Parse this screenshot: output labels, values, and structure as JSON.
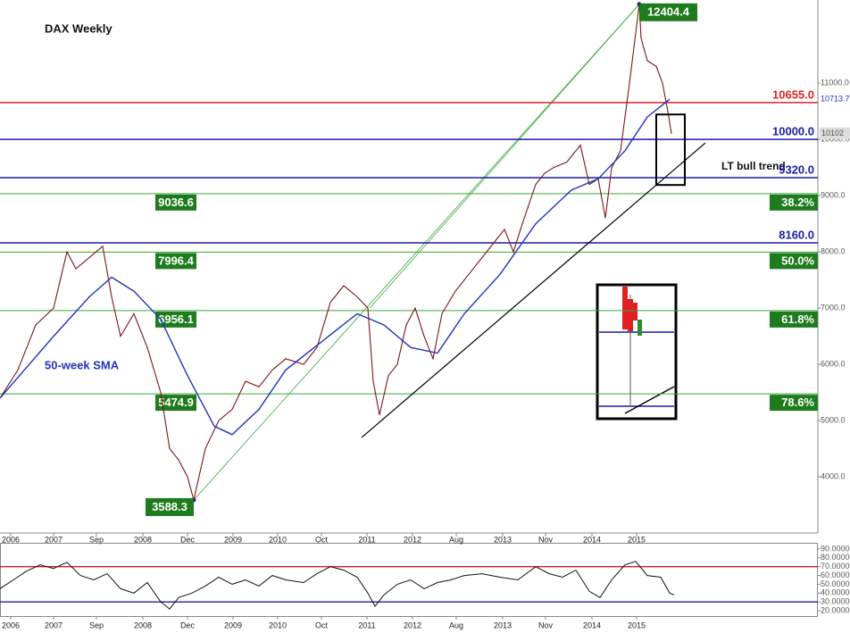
{
  "chart_data": [
    {
      "type": "line",
      "title": "DAX Weekly",
      "xlim": [
        0,
        458
      ],
      "ylim": [
        3000,
        12480
      ],
      "xticks": [
        {
          "value": 6,
          "label": "2006"
        },
        {
          "value": 30,
          "label": "2007"
        },
        {
          "value": 54,
          "label": "Sep"
        },
        {
          "value": 80,
          "label": "2008"
        },
        {
          "value": 105,
          "label": "Dec"
        },
        {
          "value": 130.5,
          "label": "2009"
        },
        {
          "value": 155.5,
          "label": "2010"
        },
        {
          "value": 180,
          "label": "Oct"
        },
        {
          "value": 205.5,
          "label": "2011"
        },
        {
          "value": 231,
          "label": "2012"
        },
        {
          "value": 255.5,
          "label": "Aug"
        },
        {
          "value": 281.5,
          "label": "2013"
        },
        {
          "value": 305.5,
          "label": "Nov"
        },
        {
          "value": 331.5,
          "label": "2014"
        },
        {
          "value": 356.5,
          "label": "2015"
        }
      ],
      "yticks": [
        {
          "value": 4000,
          "label": "4000.0"
        },
        {
          "value": 5000,
          "label": "5000.0"
        },
        {
          "value": 6000,
          "label": "6000.0"
        },
        {
          "value": 7000,
          "label": "7000.0"
        },
        {
          "value": 8000,
          "label": "8000.0"
        },
        {
          "value": 9000,
          "label": "9000.0"
        },
        {
          "value": 10000,
          "label": "10000.0"
        },
        {
          "value": 11000,
          "label": "11000.0"
        }
      ],
      "series": [
        {
          "color": "#7d1515",
          "x": [
            0,
            10,
            20,
            30,
            37.5,
            42.5,
            50,
            57.5,
            62.5,
            67.5,
            75,
            82.5,
            90,
            95,
            100,
            105,
            108.5,
            115,
            122.5,
            130,
            137.5,
            145,
            152.5,
            160,
            170,
            177.5,
            185,
            192.5,
            200,
            206,
            209,
            212.5,
            217.5,
            222.5,
            227.5,
            232.5,
            237.5,
            242.5,
            247.5,
            255,
            262.5,
            270,
            277.5,
            282.5,
            287.5,
            292.5,
            300,
            305,
            310,
            317.5,
            325,
            330,
            335,
            339,
            342.5,
            347.5,
            352.5,
            358,
            359,
            362.5,
            367.5,
            371,
            374,
            376
          ],
          "values": [
            5400,
            5900,
            6700,
            7000,
            8000,
            7700,
            7900,
            8100,
            7200,
            6500,
            6900,
            6300,
            5500,
            4500,
            4300,
            4000,
            3588.3,
            4500,
            5000,
            5200,
            5700,
            5600,
            5900,
            6100,
            6000,
            6300,
            7100,
            7400,
            7200,
            7000,
            5700,
            5100,
            5800,
            6000,
            6700,
            7000,
            6500,
            6100,
            6900,
            7300,
            7600,
            7900,
            8200,
            8400,
            8000,
            8500,
            9200,
            9400,
            9500,
            9600,
            9900,
            9200,
            9300,
            8600,
            9500,
            9800,
            11000,
            12404.4,
            11800,
            11400,
            11300,
            11000,
            10500,
            10102
          ]
        },
        {
          "name": "50-week SMA",
          "color": "#2233bb",
          "x": [
            0,
            30,
            50,
            62.5,
            75,
            90,
            105,
            120,
            130,
            145,
            160,
            180,
            200,
            215,
            230,
            245,
            260,
            280,
            300,
            320,
            335,
            350,
            362.5,
            375
          ],
          "values": [
            5400,
            6500,
            7200,
            7550,
            7300,
            6800,
            5800,
            4900,
            4750,
            5200,
            5900,
            6400,
            6900,
            6700,
            6300,
            6200,
            6900,
            7600,
            8500,
            9100,
            9300,
            9800,
            10400,
            10713.7
          ]
        }
      ],
      "levels": [
        {
          "value": 10655,
          "label": "10655.0",
          "color": "#e02424"
        },
        {
          "value": 10000,
          "label": "10000.0",
          "color": "#1c1ca6"
        },
        {
          "value": 9320,
          "label": "9320.0",
          "color": "#1c1ca6"
        },
        {
          "value": 8160,
          "label": "8160.0",
          "color": "#1c1ca6"
        }
      ],
      "fibonacci": [
        {
          "value": 9036.6,
          "label": "9036.6",
          "ratio": "38.2%"
        },
        {
          "value": 7996.4,
          "label": "7996.4",
          "ratio": "50.0%"
        },
        {
          "value": 6956.1,
          "label": "6956.1",
          "ratio": "61.8%"
        },
        {
          "value": 5474.9,
          "label": "5474.9",
          "ratio": "78.6%"
        }
      ],
      "extremes": [
        {
          "x": 358,
          "value": 12404.4,
          "label": "12404.4"
        },
        {
          "x": 108.5,
          "value": 3588.3,
          "label": "3588.3"
        }
      ],
      "trendline": {
        "label": "LT bull trend",
        "x": [
          202.5,
          395
        ],
        "values": [
          4698,
          9937
        ]
      },
      "channel": [
        {
          "x": [
            108.5,
            358
          ],
          "values": [
            3588.3,
            12404.4
          ]
        },
        {
          "x": [
            207,
            358
          ],
          "values": [
            7000,
            12404.4
          ]
        }
      ],
      "highlight_box": {
        "x": [
          367.5,
          383.5
        ],
        "values": [
          10444,
          9190
        ]
      }
    },
    {
      "type": "line",
      "xlim": [
        0,
        458
      ],
      "ylim": [
        15,
        95
      ],
      "xticks": [
        {
          "value": 6,
          "label": "2006"
        },
        {
          "value": 30,
          "label": "2007"
        },
        {
          "value": 54,
          "label": "Sep"
        },
        {
          "value": 80,
          "label": "2008"
        },
        {
          "value": 105,
          "label": "Dec"
        },
        {
          "value": 130.5,
          "label": "2009"
        },
        {
          "value": 155.5,
          "label": "2010"
        },
        {
          "value": 180,
          "label": "Oct"
        },
        {
          "value": 205.5,
          "label": "2011"
        },
        {
          "value": 231,
          "label": "2012"
        },
        {
          "value": 255.5,
          "label": "Aug"
        },
        {
          "value": 281.5,
          "label": "2013"
        },
        {
          "value": 305.5,
          "label": "Nov"
        },
        {
          "value": 331.5,
          "label": "2014"
        },
        {
          "value": 356.5,
          "label": "2015"
        }
      ],
      "yticks": [
        {
          "value": 20,
          "label": "20.0000"
        },
        {
          "value": 30,
          "label": "30.0000"
        },
        {
          "value": 40,
          "label": "40.0000"
        },
        {
          "value": 50,
          "label": "50.0000"
        },
        {
          "value": 60,
          "label": "60.0000"
        },
        {
          "value": 70,
          "label": "70.0000"
        },
        {
          "value": 80,
          "label": "80.0000"
        },
        {
          "value": 90,
          "label": "90.0000"
        }
      ],
      "series": [
        {
          "color": "#111111",
          "x": [
            0,
            7.5,
            15,
            22.5,
            30,
            37.5,
            45,
            52.5,
            60,
            67.5,
            75,
            82.5,
            90,
            95,
            100,
            107.5,
            115,
            122.5,
            130,
            137.5,
            145,
            152.5,
            160,
            170,
            177.5,
            185,
            192.5,
            200,
            206,
            210,
            215,
            222.5,
            230,
            237.5,
            245,
            252.5,
            260,
            270,
            280,
            290,
            300,
            307.5,
            315,
            322.5,
            330,
            336,
            342.5,
            350,
            356,
            362.5,
            370,
            375,
            377.5
          ],
          "values": [
            45,
            55,
            65,
            72,
            68,
            75,
            60,
            55,
            62,
            45,
            40,
            52,
            30,
            22,
            35,
            40,
            48,
            58,
            50,
            55,
            48,
            60,
            55,
            52,
            62,
            70,
            66,
            58,
            40,
            25,
            38,
            50,
            55,
            45,
            52,
            55,
            60,
            62,
            58,
            55,
            70,
            62,
            58,
            66,
            42,
            35,
            55,
            72,
            76,
            60,
            58,
            40,
            38
          ]
        }
      ],
      "levels": [
        {
          "value": 70,
          "color": "#d42020"
        },
        {
          "value": 30,
          "color": "#1c1ca6"
        }
      ]
    }
  ]
}
